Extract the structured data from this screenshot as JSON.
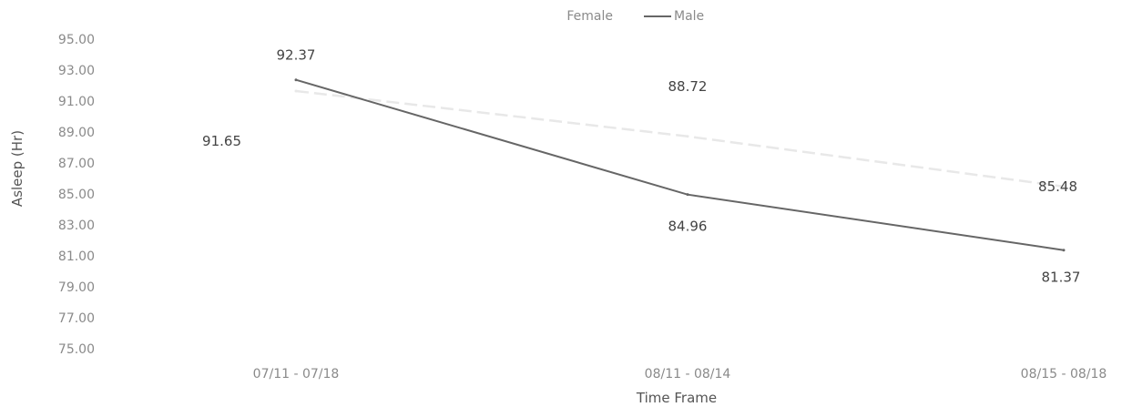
{
  "chart_data": {
    "type": "line",
    "title": "",
    "xlabel": "Time Frame",
    "ylabel": "Asleep (Hr)",
    "categories": [
      "07/11 - 07/18",
      "08/11 - 08/14",
      "08/15 - 08/18"
    ],
    "ylim": [
      75,
      95
    ],
    "yticks": [
      "75.00",
      "77.00",
      "79.00",
      "81.00",
      "83.00",
      "85.00",
      "87.00",
      "89.00",
      "91.00",
      "93.00",
      "95.00"
    ],
    "legend_position": "top-center",
    "grid": false,
    "series": [
      {
        "name": "Female",
        "values": [
          91.65,
          88.72,
          85.48
        ],
        "labels": [
          "91.65",
          "88.72",
          "85.48"
        ],
        "color": "#e8e8e8"
      },
      {
        "name": "Male",
        "values": [
          92.37,
          84.96,
          81.37
        ],
        "labels": [
          "92.37",
          "84.96",
          "81.37"
        ],
        "color": "#666666"
      }
    ]
  }
}
